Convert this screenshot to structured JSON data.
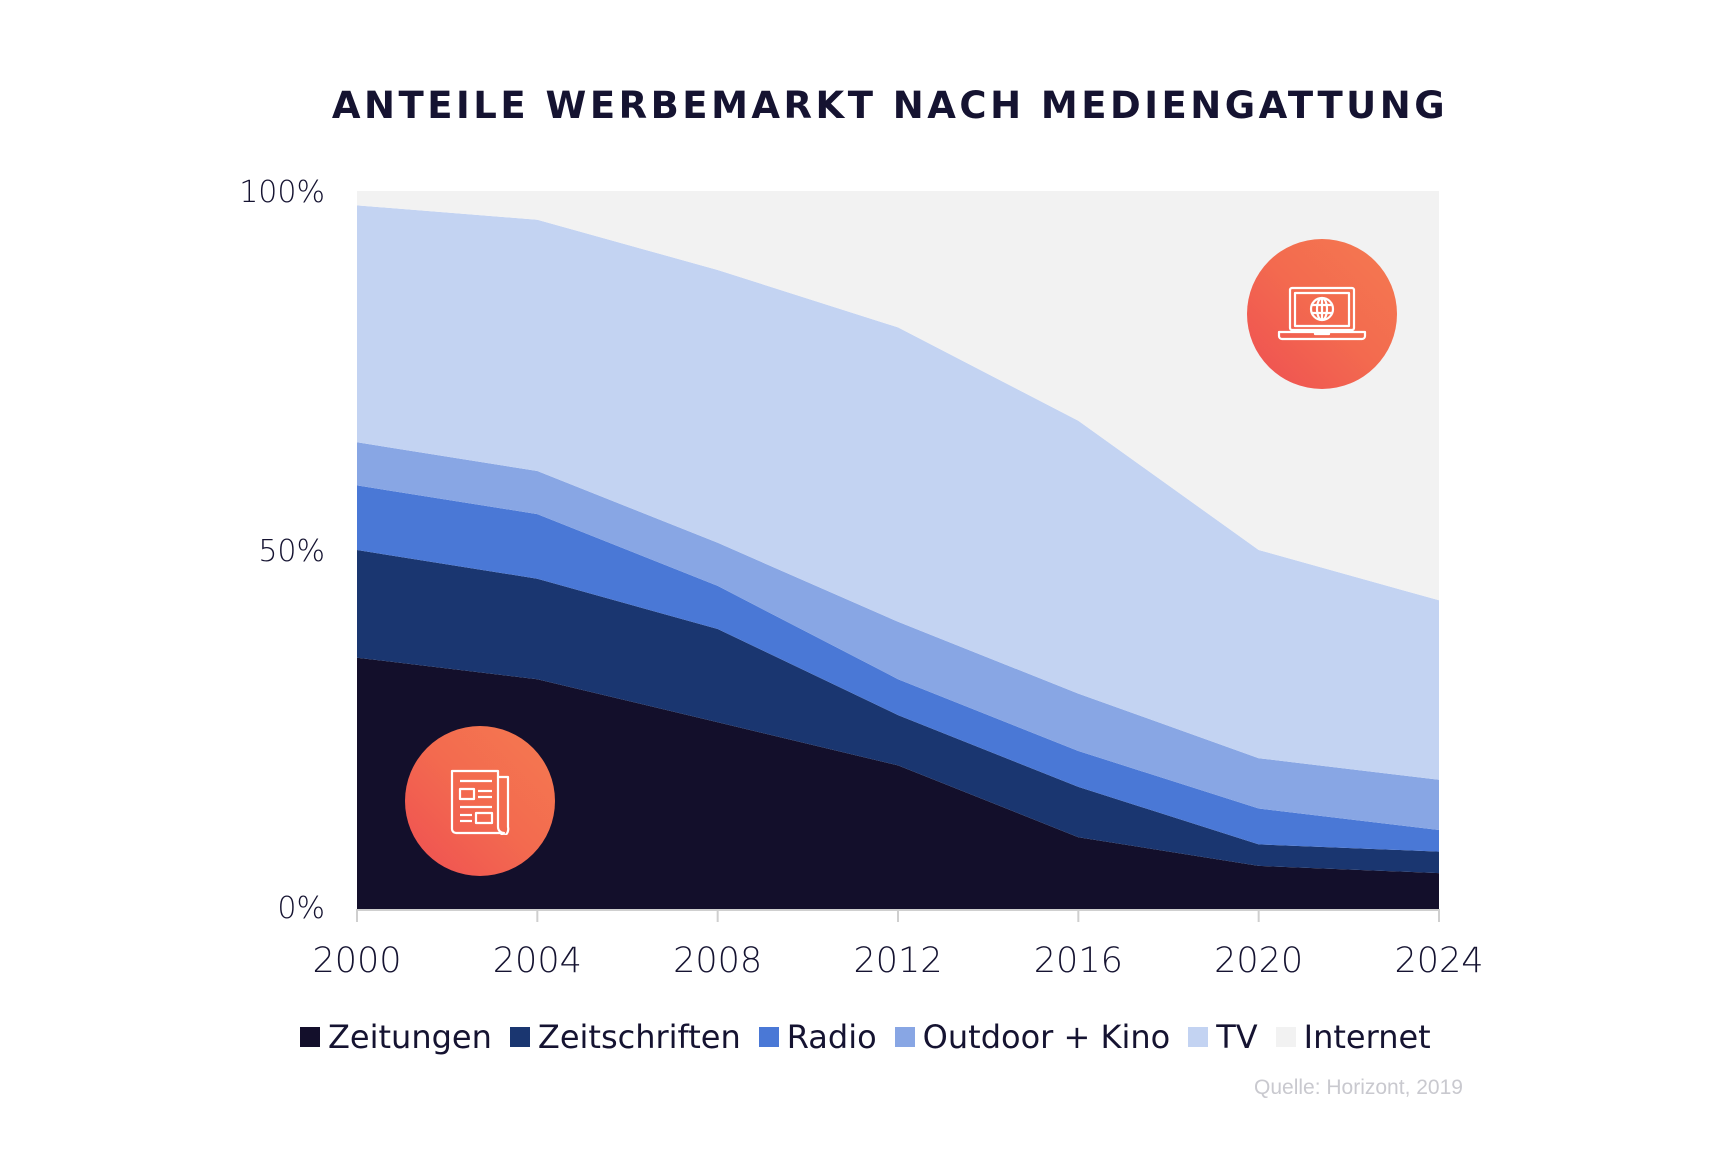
{
  "chart_data": {
    "type": "area",
    "stacked": true,
    "normalized_percent": true,
    "title": "ANTEILE WERBEMARKT NACH MEDIENGATTUNG",
    "xlabel": "",
    "ylabel": "",
    "x": [
      2000,
      2004,
      2008,
      2012,
      2016,
      2020,
      2024
    ],
    "x_tick_labels": [
      "2000",
      "2004",
      "2008",
      "2012",
      "2016",
      "2020",
      "2024"
    ],
    "y_tick_values": [
      0,
      50,
      100
    ],
    "y_tick_labels": [
      "0%",
      "50%",
      "100%"
    ],
    "ylim": [
      0,
      100
    ],
    "grid": false,
    "legend_position": "bottom",
    "series": [
      {
        "name": "Zeitungen",
        "color": "#130f2b",
        "values": [
          35,
          32,
          26,
          20,
          10,
          6,
          5
        ]
      },
      {
        "name": "Zeitschriften",
        "color": "#1a3670",
        "values": [
          15,
          14,
          13,
          7,
          7,
          3,
          3
        ]
      },
      {
        "name": "Radio",
        "color": "#4a78d6",
        "values": [
          9,
          9,
          6,
          5,
          5,
          5,
          3
        ]
      },
      {
        "name": "Outdoor + Kino",
        "color": "#88a6e4",
        "values": [
          6,
          6,
          6,
          8,
          8,
          7,
          7
        ]
      },
      {
        "name": "TV",
        "color": "#c3d3f2",
        "values": [
          33,
          35,
          38,
          41,
          38,
          29,
          25
        ]
      },
      {
        "name": "Internet",
        "color": "#f2f2f2",
        "values": [
          2,
          4,
          11,
          19,
          32,
          50,
          57
        ]
      }
    ],
    "annotations": [
      {
        "type": "icon",
        "name": "newspaper-icon",
        "near_series": "Zeitungen"
      },
      {
        "type": "icon",
        "name": "laptop-globe-icon",
        "near_series": "Internet"
      }
    ]
  },
  "source": "Quelle: Horizont, 2019",
  "accent": {
    "icon_gradient_start": "#f47a50",
    "icon_gradient_end": "#ef4f52",
    "icon_stroke": "#ffffff"
  }
}
